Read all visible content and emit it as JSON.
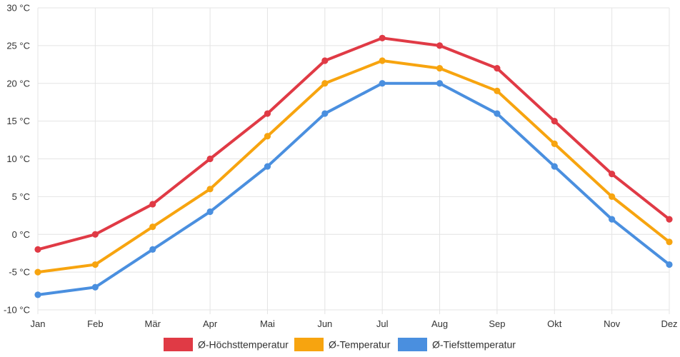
{
  "chart_data": {
    "type": "line",
    "categories": [
      "Jan",
      "Feb",
      "Mär",
      "Apr",
      "Mai",
      "Jun",
      "Jul",
      "Aug",
      "Sep",
      "Okt",
      "Nov",
      "Dez"
    ],
    "y_tick_labels": [
      "30 °C",
      "25 °C",
      "20 °C",
      "15 °C",
      "10 °C",
      "5 °C",
      "0 °C",
      "-5 °C",
      "-10 °C"
    ],
    "y_ticks": [
      30,
      25,
      20,
      15,
      10,
      5,
      0,
      -5,
      -10
    ],
    "ylim": [
      -10,
      30
    ],
    "grid": true,
    "legend_position": "bottom",
    "series": [
      {
        "name": "Ø-Höchsttemperatur",
        "color": "#e03a45",
        "values": [
          -2,
          0,
          4,
          10,
          16,
          23,
          26,
          25,
          22,
          15,
          8,
          2
        ]
      },
      {
        "name": "Ø-Temperatur",
        "color": "#f7a40f",
        "values": [
          -5,
          -4,
          1,
          6,
          13,
          20,
          23,
          22,
          19,
          12,
          5,
          -1
        ]
      },
      {
        "name": "Ø-Tiefsttemperatur",
        "color": "#4a8fdf",
        "values": [
          -8,
          -7,
          -2,
          3,
          9,
          16,
          20,
          20,
          16,
          9,
          2,
          -4
        ]
      }
    ]
  }
}
